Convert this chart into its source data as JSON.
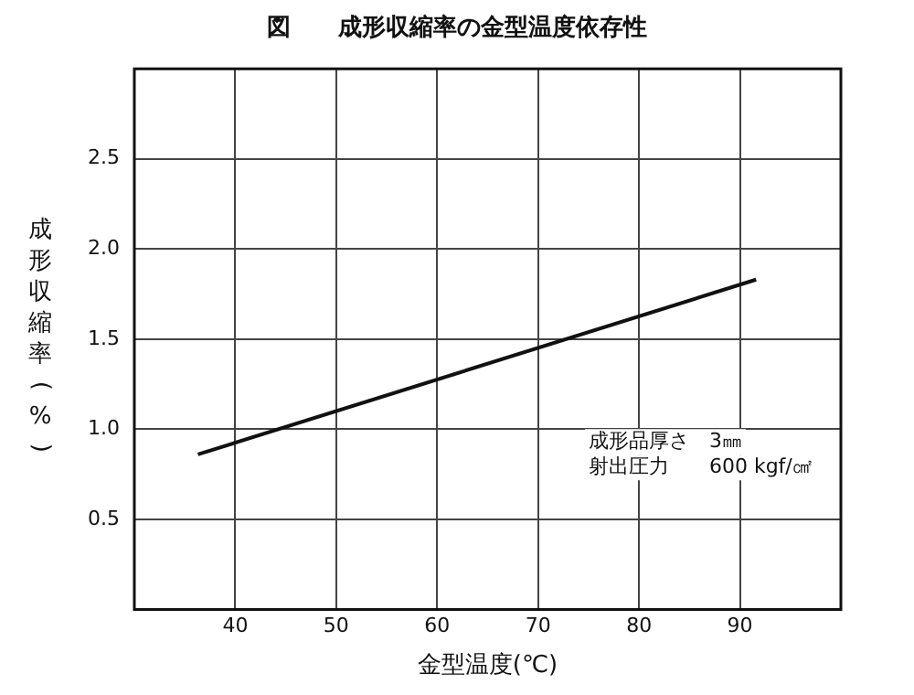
{
  "chart_data": {
    "type": "line",
    "title": "図　　成形収縮率の金型温度依存性",
    "xlabel": "金型温度(℃)",
    "ylabel": "成形収縮率(%)",
    "annotations": [
      "成形品厚さ　3㎜",
      "射出圧力　　600 kgf/㎠"
    ],
    "x": [
      36.3,
      91.6
    ],
    "series": [
      {
        "color": "#111111",
        "values": [
          0.86,
          1.83
        ]
      }
    ],
    "xlim": [
      30,
      100
    ],
    "xticks": [
      40,
      50,
      60,
      70,
      80,
      90
    ],
    "ylim": [
      0,
      3
    ],
    "yticks": [
      0.5,
      {
        "value": 1,
        "label": "1.0"
      },
      1.5,
      {
        "value": 2,
        "label": "2.0"
      },
      2.5
    ],
    "grid": true,
    "legend": false,
    "marker": "none",
    "line_style": "solid"
  }
}
